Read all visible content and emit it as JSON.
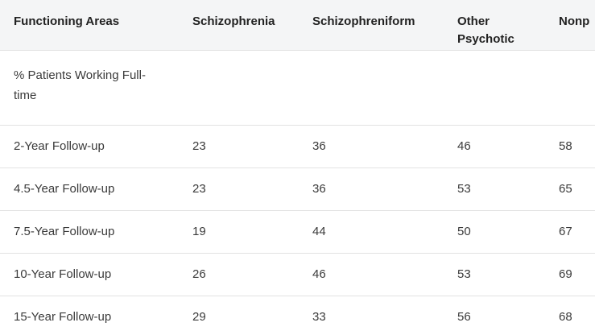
{
  "table": {
    "headers": [
      "Functioning Areas",
      "Schizophrenia",
      "Schizophreniform",
      "Other Psychotic",
      "Nonp"
    ],
    "section_label": "% Patients Working Full-time",
    "rows": [
      {
        "label": "2-Year Follow-up",
        "values": [
          "23",
          "36",
          "46",
          "58"
        ]
      },
      {
        "label": "4.5-Year Follow-up",
        "values": [
          "23",
          "36",
          "53",
          "65"
        ]
      },
      {
        "label": "7.5-Year Follow-up",
        "values": [
          "19",
          "44",
          "50",
          "67"
        ]
      },
      {
        "label": "10-Year Follow-up",
        "values": [
          "26",
          "46",
          "53",
          "69"
        ]
      },
      {
        "label": "15-Year Follow-up",
        "values": [
          "29",
          "33",
          "56",
          "68"
        ]
      }
    ]
  }
}
